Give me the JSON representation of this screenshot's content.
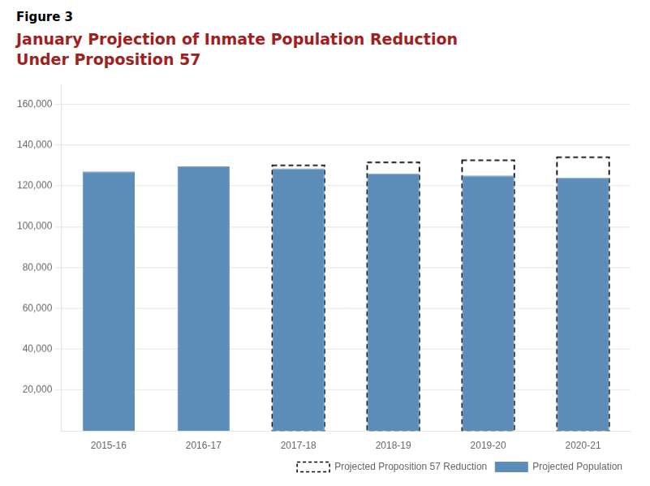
{
  "chart_data": {
    "type": "bar",
    "subtitle": "Figure 3",
    "title": [
      "January Projection of Inmate Population Reduction",
      "Under Proposition 57"
    ],
    "categories": [
      "2015-16",
      "2016-17",
      "2017-18",
      "2018-19",
      "2019-20",
      "2020-21"
    ],
    "series": [
      {
        "name": "Projected Proposition 57 Reduction",
        "color": "#000000",
        "line_style": "dashed",
        "values": [
          null,
          null,
          130000,
          131500,
          132500,
          134000
        ]
      },
      {
        "name": "Projected Population",
        "color": "#5b8db8",
        "values": [
          127000,
          129500,
          128500,
          126000,
          125000,
          124000
        ]
      }
    ],
    "ylim": [
      0,
      170000
    ],
    "yticks": [
      {
        "value": 20000,
        "label": "20,000"
      },
      {
        "value": 40000,
        "label": "40,000"
      },
      {
        "value": 60000,
        "label": "60,000"
      },
      {
        "value": 80000,
        "label": "80,000"
      },
      {
        "value": 100000,
        "label": "100,000"
      },
      {
        "value": 120000,
        "label": "120,000"
      },
      {
        "value": 140000,
        "label": "140,000"
      },
      {
        "value": 160000,
        "label": "160,000"
      }
    ],
    "grid": true,
    "legend": "lower right"
  }
}
